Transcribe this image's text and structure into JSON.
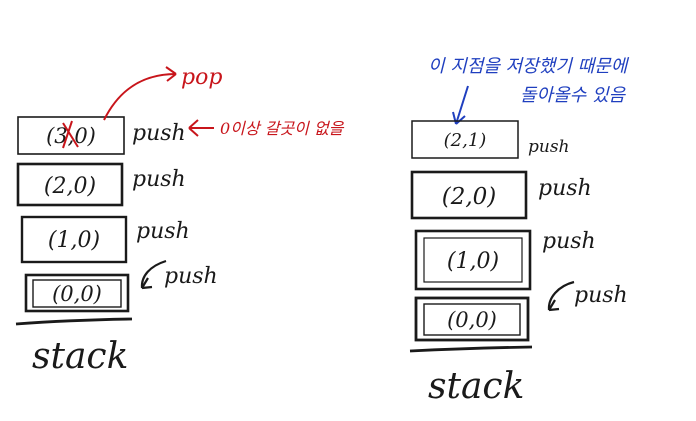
{
  "left_stack": {
    "cells": [
      "(3,0)",
      "(2,0)",
      "(1,0)",
      "(0,0)"
    ],
    "ops": [
      "push",
      "push",
      "push",
      "push"
    ],
    "base_label": "stack",
    "pop_label": "pop",
    "note": "0이상 갈곳이 없을",
    "colors": {
      "ink": "#1a1a1a",
      "annotation": "#c8151b"
    }
  },
  "right_stack": {
    "cells": [
      "(2,1)",
      "(2,0)",
      "(1,0)",
      "(0,0)"
    ],
    "ops": [
      "push",
      "push",
      "push",
      "push"
    ],
    "base_label": "stack",
    "note_line1": "이 지점을 저장했기 때문에",
    "note_line2": "돌아올수 있음",
    "colors": {
      "ink": "#1a1a1a",
      "annotation": "#1f3fbf"
    }
  }
}
